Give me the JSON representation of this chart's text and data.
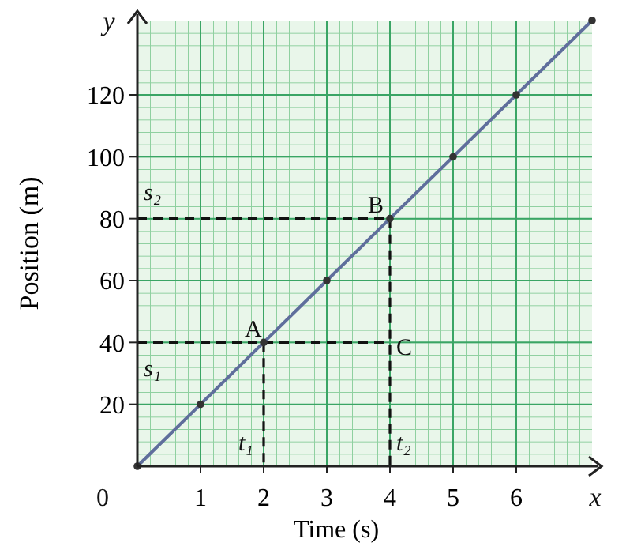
{
  "chart_data": {
    "type": "line",
    "xlabel": "Time (s)",
    "ylabel": "Position (m)",
    "xlim": [
      0,
      7.2
    ],
    "ylim": [
      0,
      144
    ],
    "xticks": [
      1,
      2,
      3,
      4,
      5,
      6
    ],
    "yticks": [
      20,
      40,
      60,
      80,
      100,
      120
    ],
    "grid": true,
    "series": [
      {
        "color": "#5f6e9c",
        "x": [
          0,
          1,
          2,
          3,
          4,
          5,
          6,
          7.2
        ],
        "values": [
          0,
          20,
          40,
          60,
          80,
          100,
          120,
          144
        ],
        "marker": "circle",
        "line_style": "solid"
      },
      {
        "color": "#111111",
        "x": [
          0,
          4,
          4
        ],
        "values": [
          80,
          80,
          0
        ],
        "marker": "none",
        "line_style": "dashed"
      },
      {
        "color": "#111111",
        "x": [
          0,
          4
        ],
        "values": [
          40,
          40
        ],
        "marker": "none",
        "line_style": "dashed"
      },
      {
        "color": "#111111",
        "x": [
          2,
          2
        ],
        "values": [
          40,
          0
        ],
        "marker": "none",
        "line_style": "dashed"
      }
    ],
    "annotations": [
      {
        "text": "A",
        "x": 1.7,
        "y": 42
      },
      {
        "text": "B",
        "x": 3.65,
        "y": 82
      },
      {
        "text": "C",
        "x": 4.1,
        "y": 36
      },
      "s₂",
      "s₁",
      "t₁",
      "t₂",
      "x",
      "y",
      "0"
    ]
  }
}
